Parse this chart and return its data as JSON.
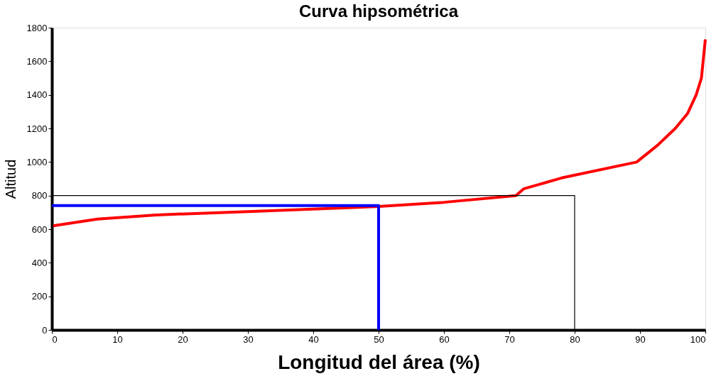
{
  "chart_data": {
    "type": "line",
    "title": "Curva hipsométrica",
    "xlabel": "Longitud del área (%)",
    "ylabel": "Altitud",
    "xlim": [
      0,
      100
    ],
    "xticks": [
      0,
      10,
      20,
      30,
      40,
      50,
      60,
      70,
      80,
      90,
      100
    ],
    "ylim": [
      0,
      1800
    ],
    "yticks": [
      0,
      200,
      400,
      600,
      800,
      1000,
      1200,
      1400,
      1600,
      1800
    ],
    "grid": false,
    "marker": "none",
    "line_style": "solid",
    "series": [
      {
        "color": "#ff0000",
        "x": [
          0.2,
          7,
          16,
          30,
          50,
          60,
          71,
          72.2,
          78,
          89.5,
          92.7,
          95.4,
          97.3,
          98.6,
          99.4,
          100
        ],
        "values": [
          620,
          660,
          685,
          705,
          735,
          760,
          800,
          840,
          905,
          1000,
          1100,
          1200,
          1290,
          1400,
          1500,
          1730
        ]
      },
      {
        "color": "#0000ff",
        "x": [
          0,
          50,
          50
        ],
        "values": [
          740,
          740,
          0
        ]
      },
      {
        "color": "#000000",
        "x": [
          0,
          80,
          80
        ],
        "values": [
          800,
          800,
          0
        ]
      }
    ]
  }
}
